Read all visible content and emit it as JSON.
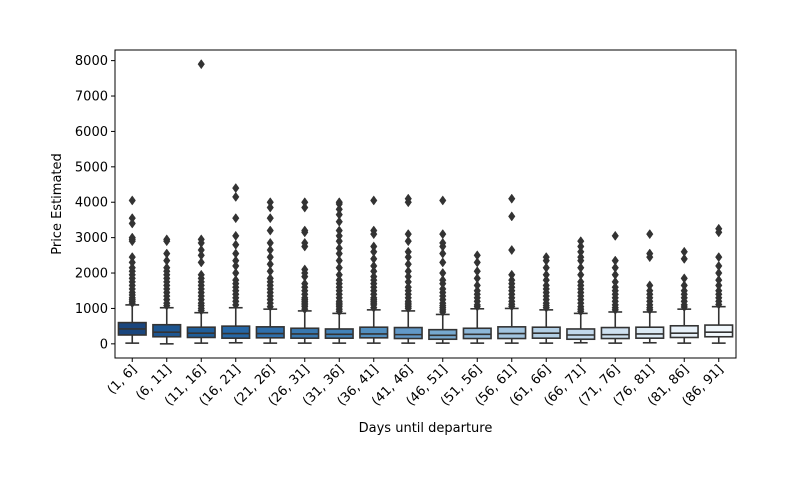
{
  "chart_data": {
    "type": "box",
    "title": "",
    "xlabel": "Days until departure",
    "ylabel": "Price Estimated",
    "ylim": [
      -400,
      8300
    ],
    "yticks": [
      0,
      1000,
      2000,
      3000,
      4000,
      5000,
      6000,
      7000,
      8000
    ],
    "grid": false,
    "legend": "none",
    "categories": [
      "(1, 6]",
      "(6, 11]",
      "(11, 16]",
      "(16, 21]",
      "(21, 26]",
      "(26, 31]",
      "(31, 36]",
      "(36, 41]",
      "(41, 46]",
      "(46, 51]",
      "(51, 56]",
      "(56, 61]",
      "(61, 66]",
      "(66, 71]",
      "(71, 76]",
      "(76, 81]",
      "(81, 86]",
      "(86, 91]"
    ],
    "colors": [
      "#1a467e",
      "#1d5590",
      "#1f5d98",
      "#2667a6",
      "#2f6fac",
      "#3878b0",
      "#4282b8",
      "#528fc0",
      "#6299c8",
      "#76a8cf",
      "#8db7d8",
      "#a3c5e0",
      "#b3cfe5",
      "#c2d8eb",
      "#cfe1f0",
      "#dceaf4",
      "#e8f1f9",
      "#f2f8fc"
    ],
    "boxes": [
      {
        "whisker_low": 20,
        "q1": 250,
        "median": 420,
        "q3": 600,
        "whisker_high": 1100,
        "fliers": [
          1150,
          1200,
          1250,
          1300,
          1380,
          1450,
          1550,
          1650,
          1750,
          1850,
          1950,
          2050,
          2150,
          2300,
          2450,
          2900,
          2950,
          3000,
          3400,
          3550,
          4050
        ]
      },
      {
        "whisker_low": 0,
        "q1": 200,
        "median": 330,
        "q3": 540,
        "whisker_high": 1020,
        "fliers": [
          1080,
          1150,
          1250,
          1350,
          1450,
          1550,
          1650,
          1750,
          1850,
          1950,
          2050,
          2150,
          2350,
          2550,
          2900,
          2950
        ]
      },
      {
        "whisker_low": 20,
        "q1": 180,
        "median": 300,
        "q3": 470,
        "whisker_high": 880,
        "fliers": [
          940,
          1000,
          1080,
          1150,
          1250,
          1350,
          1450,
          1550,
          1650,
          1750,
          1850,
          1950,
          2300,
          2500,
          2650,
          2850,
          2950,
          7900
        ]
      },
      {
        "whisker_low": 30,
        "q1": 160,
        "median": 290,
        "q3": 500,
        "whisker_high": 1020,
        "fliers": [
          1100,
          1200,
          1300,
          1400,
          1500,
          1600,
          1700,
          1800,
          2000,
          2200,
          2350,
          2550,
          2800,
          3050,
          3550,
          4150,
          4400
        ]
      },
      {
        "whisker_low": 20,
        "q1": 170,
        "median": 290,
        "q3": 480,
        "whisker_high": 980,
        "fliers": [
          1050,
          1150,
          1250,
          1350,
          1450,
          1550,
          1650,
          1750,
          1850,
          2050,
          2250,
          2450,
          2650,
          2850,
          3200,
          3550,
          3850,
          4000
        ]
      },
      {
        "whisker_low": 20,
        "q1": 160,
        "median": 280,
        "q3": 440,
        "whisker_high": 930,
        "fliers": [
          980,
          1050,
          1100,
          1150,
          1200,
          1250,
          1300,
          1400,
          1500,
          1600,
          1700,
          1900,
          2000,
          2100,
          2750,
          2850,
          3150,
          3200,
          3850,
          4000
        ]
      },
      {
        "whisker_low": 20,
        "q1": 160,
        "median": 270,
        "q3": 420,
        "whisker_high": 860,
        "fliers": [
          920,
          980,
          1050,
          1100,
          1150,
          1200,
          1300,
          1400,
          1500,
          1600,
          1700,
          1800,
          1950,
          2150,
          2350,
          2550,
          2700,
          2900,
          3050,
          3200,
          3450,
          3650,
          3800,
          3950,
          4000
        ]
      },
      {
        "whisker_low": 20,
        "q1": 170,
        "median": 280,
        "q3": 470,
        "whisker_high": 960,
        "fliers": [
          1020,
          1100,
          1150,
          1200,
          1250,
          1300,
          1400,
          1500,
          1600,
          1700,
          1800,
          1900,
          2050,
          2200,
          2400,
          2600,
          2750,
          3100,
          3200,
          4050
        ]
      },
      {
        "whisker_low": 20,
        "q1": 150,
        "median": 260,
        "q3": 460,
        "whisker_high": 930,
        "fliers": [
          1000,
          1050,
          1100,
          1150,
          1200,
          1300,
          1400,
          1500,
          1600,
          1750,
          1900,
          2050,
          2250,
          2450,
          2600,
          2900,
          3100,
          4000,
          4100
        ]
      },
      {
        "whisker_low": 20,
        "q1": 130,
        "median": 240,
        "q3": 400,
        "whisker_high": 830,
        "fliers": [
          900,
          960,
          1020,
          1080,
          1150,
          1250,
          1350,
          1450,
          1550,
          1700,
          1800,
          2000,
          2300,
          2550,
          2750,
          2850,
          3100,
          4050
        ]
      },
      {
        "whisker_low": 20,
        "q1": 150,
        "median": 270,
        "q3": 440,
        "whisker_high": 990,
        "fliers": [
          1050,
          1100,
          1200,
          1300,
          1400,
          1500,
          1650,
          1850,
          2050,
          2300,
          2500
        ]
      },
      {
        "whisker_low": 20,
        "q1": 150,
        "median": 290,
        "q3": 480,
        "whisker_high": 1000,
        "fliers": [
          1060,
          1120,
          1200,
          1300,
          1400,
          1500,
          1600,
          1700,
          1800,
          1950,
          2650,
          3600,
          4100
        ]
      },
      {
        "whisker_low": 20,
        "q1": 160,
        "median": 300,
        "q3": 470,
        "whisker_high": 960,
        "fliers": [
          1020,
          1080,
          1150,
          1250,
          1350,
          1450,
          1550,
          1650,
          1800,
          1950,
          2150,
          2350,
          2450
        ]
      },
      {
        "whisker_low": 30,
        "q1": 130,
        "median": 250,
        "q3": 420,
        "whisker_high": 860,
        "fliers": [
          920,
          980,
          1050,
          1150,
          1250,
          1350,
          1450,
          1550,
          1650,
          1750,
          1950,
          2150,
          2350,
          2450,
          2600,
          2750,
          2900
        ]
      },
      {
        "whisker_low": 20,
        "q1": 150,
        "median": 260,
        "q3": 460,
        "whisker_high": 900,
        "fliers": [
          960,
          1020,
          1100,
          1200,
          1300,
          1400,
          1500,
          1600,
          1750,
          1950,
          2150,
          2350,
          3050
        ]
      },
      {
        "whisker_low": 30,
        "q1": 160,
        "median": 280,
        "q3": 470,
        "whisker_high": 900,
        "fliers": [
          960,
          1020,
          1100,
          1200,
          1300,
          1400,
          1500,
          1650,
          2450,
          2550,
          3100
        ]
      },
      {
        "whisker_low": 20,
        "q1": 180,
        "median": 300,
        "q3": 510,
        "whisker_high": 980,
        "fliers": [
          1040,
          1100,
          1200,
          1300,
          1400,
          1500,
          1650,
          1850,
          2400,
          2600
        ]
      },
      {
        "whisker_low": 20,
        "q1": 200,
        "median": 330,
        "q3": 530,
        "whisker_high": 1050,
        "fliers": [
          1110,
          1200,
          1300,
          1400,
          1500,
          1650,
          1800,
          2000,
          2200,
          2450,
          3150,
          3250
        ]
      }
    ]
  }
}
